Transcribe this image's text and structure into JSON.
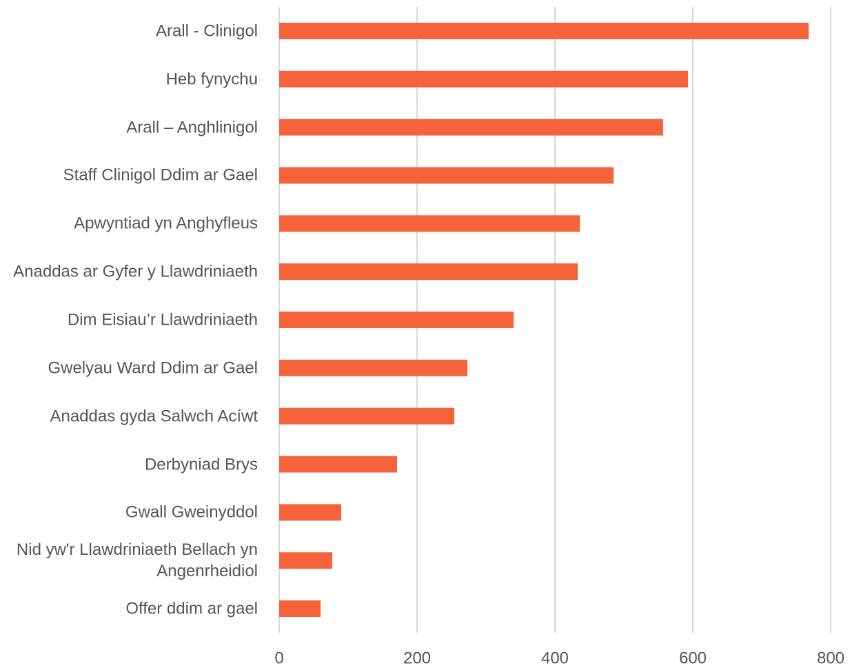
{
  "chart_data": {
    "type": "barh",
    "categories": [
      "Arall - Clinigol",
      "Heb fynychu",
      "Arall – Anghlinigol",
      "Staff Clinigol Ddim ar Gael",
      "Apwyntiad yn Anghyfleus",
      "Anaddas ar Gyfer y Llawdriniaeth",
      "Dim Eisiau’r Llawdriniaeth",
      "Gwelyau Ward Ddim ar Gael",
      "Anaddas gyda Salwch Acíwt",
      "Derbyniad Brys",
      "Gwall Gweinyddol",
      "Nid yw'r Llawdriniaeth Bellach yn Angenrheidiol",
      "Offer ddim ar gael"
    ],
    "values": [
      768,
      593,
      557,
      485,
      436,
      433,
      340,
      273,
      254,
      171,
      90,
      77,
      60
    ],
    "color": "#f5633a",
    "xlim": [
      0,
      800
    ],
    "xticks": [
      0,
      200,
      400,
      600,
      800
    ],
    "grid": true
  }
}
